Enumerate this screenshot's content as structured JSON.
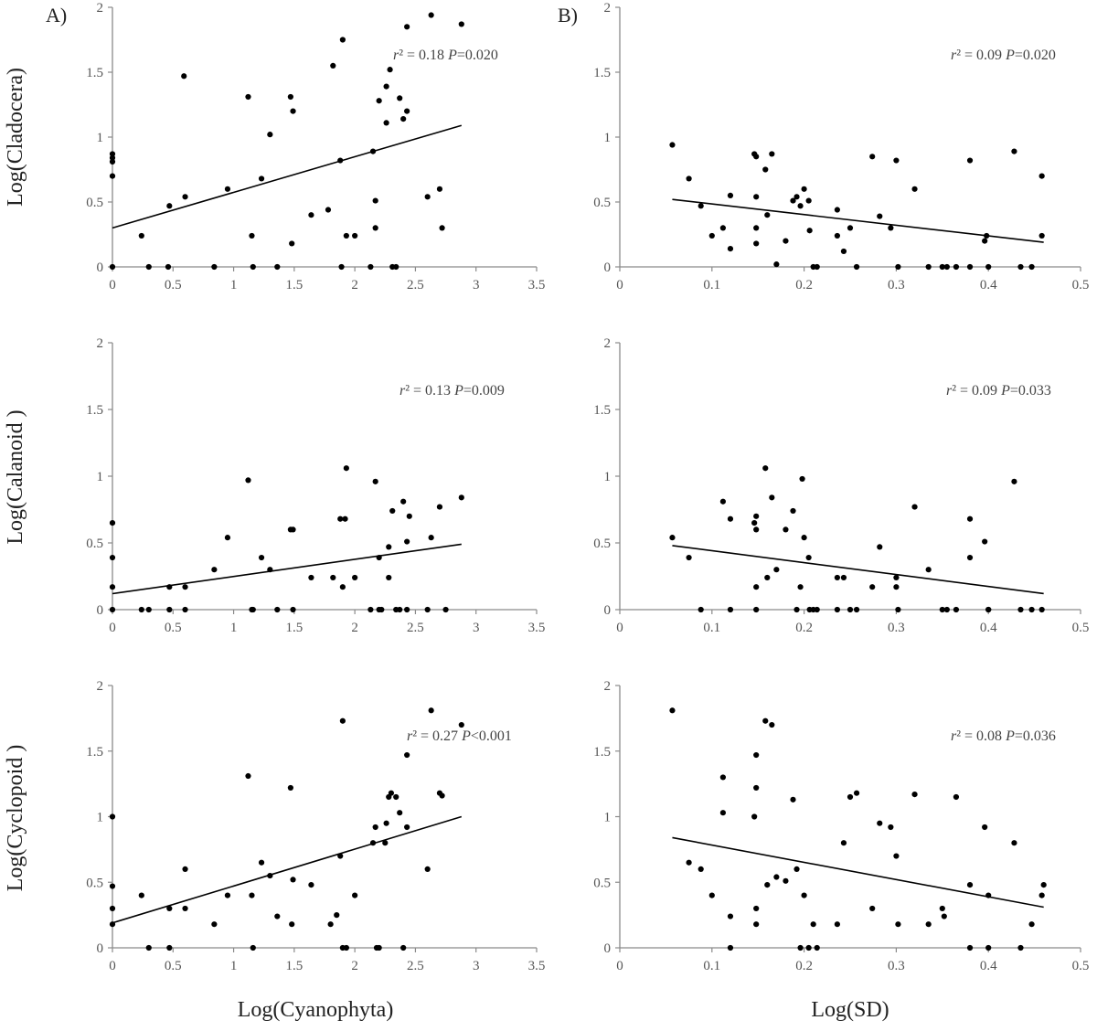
{
  "figure": {
    "panel_labels": [
      "A)",
      "B)"
    ],
    "y_axis_labels": [
      "Log(Cladocera)",
      "Log(Calanoid )",
      "Log(Cyclopoid )"
    ],
    "x_axis_labels": [
      "Log(Cyanophyta)",
      "Log(SD)"
    ]
  },
  "chart_data": [
    {
      "type": "scatter",
      "title": "",
      "xlabel": "",
      "ylabel": "Log(Cladocera)",
      "xlim": [
        0,
        3.5
      ],
      "ylim": [
        0,
        2
      ],
      "xticks": [
        "0",
        "0.5",
        "1",
        "1.5",
        "2",
        "2.5",
        "3",
        "3.5"
      ],
      "yticks": [
        "0",
        "0.5",
        "1",
        "1.5",
        "2"
      ],
      "annotation": {
        "r2_label": "r² = 0.18",
        "p_label": "P=0.020"
      },
      "trendline": {
        "x": [
          0,
          2.88
        ],
        "y": [
          0.3,
          1.09
        ]
      },
      "points": [
        [
          0,
          0.87
        ],
        [
          0,
          0.84
        ],
        [
          0,
          0.81
        ],
        [
          0,
          0.7
        ],
        [
          0,
          0
        ],
        [
          0.24,
          0.24
        ],
        [
          0.3,
          0
        ],
        [
          0.46,
          0
        ],
        [
          0.47,
          0.47
        ],
        [
          0.59,
          1.47
        ],
        [
          0.6,
          0.54
        ],
        [
          0.84,
          0
        ],
        [
          0.95,
          0.6
        ],
        [
          1.12,
          1.31
        ],
        [
          1.15,
          0.24
        ],
        [
          1.16,
          0
        ],
        [
          1.23,
          0.68
        ],
        [
          1.3,
          1.02
        ],
        [
          1.36,
          0
        ],
        [
          1.47,
          1.31
        ],
        [
          1.48,
          0.18
        ],
        [
          1.49,
          1.2
        ],
        [
          1.64,
          0.4
        ],
        [
          1.78,
          0.44
        ],
        [
          1.82,
          1.55
        ],
        [
          1.88,
          0.82
        ],
        [
          1.89,
          0
        ],
        [
          1.9,
          1.75
        ],
        [
          1.93,
          0.24
        ],
        [
          2.0,
          0.24
        ],
        [
          2.13,
          0
        ],
        [
          2.15,
          0.89
        ],
        [
          2.17,
          0.51
        ],
        [
          2.17,
          0.3
        ],
        [
          2.2,
          1.28
        ],
        [
          2.26,
          1.11
        ],
        [
          2.26,
          1.39
        ],
        [
          2.29,
          1.52
        ],
        [
          2.31,
          0
        ],
        [
          2.34,
          0
        ],
        [
          2.37,
          1.3
        ],
        [
          2.4,
          1.14
        ],
        [
          2.43,
          1.85
        ],
        [
          2.43,
          1.2
        ],
        [
          2.6,
          0.54
        ],
        [
          2.63,
          1.94
        ],
        [
          2.7,
          0.6
        ],
        [
          2.72,
          0.3
        ],
        [
          2.88,
          1.87
        ]
      ]
    },
    {
      "type": "scatter",
      "title": "",
      "xlabel": "",
      "ylabel": "",
      "xlim": [
        0,
        0.5
      ],
      "ylim": [
        0,
        2
      ],
      "xticks": [
        "0",
        "0.1",
        "0.2",
        "0.3",
        "0.4",
        "0.5"
      ],
      "yticks": [
        "0",
        "0.5",
        "1",
        "1.5",
        "2"
      ],
      "annotation": {
        "r2_label": "r² = 0.09",
        "p_label": "P=0.020"
      },
      "trendline": {
        "x": [
          0.057,
          0.46
        ],
        "y": [
          0.52,
          0.19
        ]
      },
      "points": [
        [
          0.057,
          0.94
        ],
        [
          0.075,
          0.68
        ],
        [
          0.088,
          0.47
        ],
        [
          0.1,
          0.24
        ],
        [
          0.112,
          0.3
        ],
        [
          0.12,
          0.14
        ],
        [
          0.12,
          0.55
        ],
        [
          0.146,
          0.87
        ],
        [
          0.148,
          0.85
        ],
        [
          0.148,
          0.54
        ],
        [
          0.148,
          0.3
        ],
        [
          0.148,
          0.18
        ],
        [
          0.158,
          0.75
        ],
        [
          0.16,
          0.4
        ],
        [
          0.165,
          0.87
        ],
        [
          0.17,
          0.02
        ],
        [
          0.18,
          0.2
        ],
        [
          0.188,
          0.51
        ],
        [
          0.192,
          0.54
        ],
        [
          0.196,
          0.47
        ],
        [
          0.2,
          0.6
        ],
        [
          0.205,
          0.51
        ],
        [
          0.206,
          0.28
        ],
        [
          0.21,
          0
        ],
        [
          0.214,
          0
        ],
        [
          0.236,
          0.44
        ],
        [
          0.236,
          0.24
        ],
        [
          0.243,
          0.12
        ],
        [
          0.25,
          0.3
        ],
        [
          0.257,
          0
        ],
        [
          0.274,
          0.85
        ],
        [
          0.282,
          0.39
        ],
        [
          0.294,
          0.3
        ],
        [
          0.3,
          0.82
        ],
        [
          0.302,
          0
        ],
        [
          0.32,
          0.6
        ],
        [
          0.335,
          0
        ],
        [
          0.35,
          0
        ],
        [
          0.355,
          0
        ],
        [
          0.365,
          0
        ],
        [
          0.38,
          0.82
        ],
        [
          0.38,
          0
        ],
        [
          0.396,
          0.2
        ],
        [
          0.398,
          0.24
        ],
        [
          0.4,
          0
        ],
        [
          0.428,
          0.89
        ],
        [
          0.435,
          0
        ],
        [
          0.447,
          0
        ],
        [
          0.458,
          0.7
        ],
        [
          0.458,
          0.24
        ]
      ]
    },
    {
      "type": "scatter",
      "title": "",
      "xlabel": "",
      "ylabel": "Log(Calanoid )",
      "xlim": [
        0,
        3.5
      ],
      "ylim": [
        0,
        2
      ],
      "xticks": [
        "0",
        "0.5",
        "1",
        "1.5",
        "2",
        "2.5",
        "3",
        "3.5"
      ],
      "yticks": [
        "0",
        "0.5",
        "1",
        "1.5",
        "2"
      ],
      "annotation": {
        "r2_label": "r² = 0.13",
        "p_label": "P=0.009"
      },
      "trendline": {
        "x": [
          0,
          2.88
        ],
        "y": [
          0.12,
          0.49
        ]
      },
      "points": [
        [
          0,
          0.65
        ],
        [
          0,
          0.39
        ],
        [
          0,
          0.17
        ],
        [
          0,
          0
        ],
        [
          0.24,
          0
        ],
        [
          0.3,
          0
        ],
        [
          0.47,
          0.17
        ],
        [
          0.47,
          0
        ],
        [
          0.6,
          0.17
        ],
        [
          0.6,
          0
        ],
        [
          0.84,
          0.3
        ],
        [
          0.95,
          0.54
        ],
        [
          1.12,
          0.97
        ],
        [
          1.15,
          0
        ],
        [
          1.16,
          0
        ],
        [
          1.23,
          0.39
        ],
        [
          1.3,
          0.3
        ],
        [
          1.36,
          0
        ],
        [
          1.47,
          0.6
        ],
        [
          1.49,
          0.6
        ],
        [
          1.49,
          0
        ],
        [
          1.64,
          0.24
        ],
        [
          1.82,
          0.24
        ],
        [
          1.88,
          0.68
        ],
        [
          1.9,
          0.17
        ],
        [
          1.92,
          0.68
        ],
        [
          1.93,
          1.06
        ],
        [
          2.0,
          0.24
        ],
        [
          2.13,
          0
        ],
        [
          2.17,
          0.96
        ],
        [
          2.2,
          0.39
        ],
        [
          2.2,
          0
        ],
        [
          2.22,
          0
        ],
        [
          2.28,
          0.24
        ],
        [
          2.28,
          0.47
        ],
        [
          2.31,
          0.74
        ],
        [
          2.34,
          0
        ],
        [
          2.37,
          0
        ],
        [
          2.4,
          0.81
        ],
        [
          2.43,
          0
        ],
        [
          2.43,
          0.51
        ],
        [
          2.45,
          0.7
        ],
        [
          2.6,
          0
        ],
        [
          2.63,
          0.54
        ],
        [
          2.7,
          0.77
        ],
        [
          2.75,
          0
        ],
        [
          2.88,
          0.84
        ]
      ]
    },
    {
      "type": "scatter",
      "title": "",
      "xlabel": "",
      "ylabel": "",
      "xlim": [
        0,
        0.5
      ],
      "ylim": [
        0,
        2
      ],
      "xticks": [
        "0",
        "0.1",
        "0.2",
        "0.3",
        "0.4",
        "0.5"
      ],
      "yticks": [
        "0",
        "0.5",
        "1",
        "1.5",
        "2"
      ],
      "annotation": {
        "r2_label": "r² = 0.09",
        "p_label": "P=0.033"
      },
      "trendline": {
        "x": [
          0.057,
          0.46
        ],
        "y": [
          0.48,
          0.12
        ]
      },
      "points": [
        [
          0.057,
          0.54
        ],
        [
          0.075,
          0.39
        ],
        [
          0.088,
          0
        ],
        [
          0.112,
          0.81
        ],
        [
          0.12,
          0.68
        ],
        [
          0.12,
          0
        ],
        [
          0.146,
          0.65
        ],
        [
          0.148,
          0.7
        ],
        [
          0.148,
          0.6
        ],
        [
          0.148,
          0.17
        ],
        [
          0.148,
          0
        ],
        [
          0.158,
          1.06
        ],
        [
          0.16,
          0.24
        ],
        [
          0.165,
          0.84
        ],
        [
          0.17,
          0.3
        ],
        [
          0.18,
          0.6
        ],
        [
          0.188,
          0.74
        ],
        [
          0.192,
          0
        ],
        [
          0.196,
          0.17
        ],
        [
          0.198,
          0.98
        ],
        [
          0.2,
          0.54
        ],
        [
          0.205,
          0.39
        ],
        [
          0.206,
          0
        ],
        [
          0.21,
          0
        ],
        [
          0.214,
          0
        ],
        [
          0.236,
          0.24
        ],
        [
          0.236,
          0
        ],
        [
          0.243,
          0.24
        ],
        [
          0.25,
          0
        ],
        [
          0.257,
          0
        ],
        [
          0.274,
          0.17
        ],
        [
          0.282,
          0.47
        ],
        [
          0.3,
          0.24
        ],
        [
          0.3,
          0.17
        ],
        [
          0.302,
          0
        ],
        [
          0.32,
          0.77
        ],
        [
          0.335,
          0.3
        ],
        [
          0.35,
          0
        ],
        [
          0.355,
          0
        ],
        [
          0.365,
          0
        ],
        [
          0.38,
          0.68
        ],
        [
          0.38,
          0.39
        ],
        [
          0.396,
          0.51
        ],
        [
          0.4,
          0
        ],
        [
          0.4,
          0
        ],
        [
          0.428,
          0.96
        ],
        [
          0.435,
          0
        ],
        [
          0.447,
          0
        ],
        [
          0.458,
          0
        ]
      ]
    },
    {
      "type": "scatter",
      "title": "",
      "xlabel": "Log(Cyanophyta)",
      "ylabel": "Log(Cyclopoid )",
      "xlim": [
        0,
        3.5
      ],
      "ylim": [
        0,
        2
      ],
      "xticks": [
        "0",
        "0.5",
        "1",
        "1.5",
        "2",
        "2.5",
        "3",
        "3.5"
      ],
      "yticks": [
        "0",
        "0.5",
        "1",
        "1.5",
        "2"
      ],
      "annotation": {
        "r2_label": "r² = 0.27",
        "p_label": "P<0.001"
      },
      "trendline": {
        "x": [
          0,
          2.88
        ],
        "y": [
          0.19,
          1.0
        ]
      },
      "points": [
        [
          0,
          0.47
        ],
        [
          0,
          0.3
        ],
        [
          0,
          0.18
        ],
        [
          0,
          1.0
        ],
        [
          0.24,
          0.4
        ],
        [
          0.3,
          0
        ],
        [
          0.47,
          0.3
        ],
        [
          0.47,
          0
        ],
        [
          0.6,
          0.6
        ],
        [
          0.6,
          0.3
        ],
        [
          0.84,
          0.18
        ],
        [
          0.95,
          0.4
        ],
        [
          1.12,
          1.31
        ],
        [
          1.15,
          0.4
        ],
        [
          1.16,
          0
        ],
        [
          1.23,
          0.65
        ],
        [
          1.3,
          0.55
        ],
        [
          1.36,
          0.24
        ],
        [
          1.47,
          1.22
        ],
        [
          1.48,
          0.18
        ],
        [
          1.49,
          0.52
        ],
        [
          1.64,
          0.48
        ],
        [
          1.8,
          0.18
        ],
        [
          1.85,
          0.25
        ],
        [
          1.88,
          0.7
        ],
        [
          1.9,
          0
        ],
        [
          1.9,
          1.73
        ],
        [
          1.93,
          0
        ],
        [
          2.0,
          0.4
        ],
        [
          2.15,
          0.8
        ],
        [
          2.17,
          0.92
        ],
        [
          2.18,
          0
        ],
        [
          2.2,
          0
        ],
        [
          2.25,
          0.8
        ],
        [
          2.26,
          0.95
        ],
        [
          2.28,
          1.15
        ],
        [
          2.3,
          1.18
        ],
        [
          2.34,
          1.15
        ],
        [
          2.37,
          1.03
        ],
        [
          2.4,
          0
        ],
        [
          2.43,
          1.47
        ],
        [
          2.43,
          0.92
        ],
        [
          2.6,
          0.6
        ],
        [
          2.63,
          1.81
        ],
        [
          2.7,
          1.18
        ],
        [
          2.72,
          1.16
        ],
        [
          2.88,
          1.7
        ]
      ]
    },
    {
      "type": "scatter",
      "title": "",
      "xlabel": "Log(SD)",
      "ylabel": "",
      "xlim": [
        0,
        0.5
      ],
      "ylim": [
        0,
        2
      ],
      "xticks": [
        "0",
        "0.1",
        "0.2",
        "0.3",
        "0.4",
        "0.5"
      ],
      "yticks": [
        "0",
        "0.5",
        "1",
        "1.5",
        "2"
      ],
      "annotation": {
        "r2_label": "r² = 0.08",
        "p_label": "P=0.036"
      },
      "trendline": {
        "x": [
          0.057,
          0.46
        ],
        "y": [
          0.84,
          0.31
        ]
      },
      "points": [
        [
          0.057,
          1.81
        ],
        [
          0.075,
          0.65
        ],
        [
          0.088,
          0.6
        ],
        [
          0.1,
          0.4
        ],
        [
          0.112,
          1.3
        ],
        [
          0.112,
          1.03
        ],
        [
          0.12,
          0.24
        ],
        [
          0.12,
          0
        ],
        [
          0.146,
          1.0
        ],
        [
          0.148,
          1.47
        ],
        [
          0.148,
          1.22
        ],
        [
          0.148,
          0.3
        ],
        [
          0.148,
          0.18
        ],
        [
          0.158,
          1.73
        ],
        [
          0.16,
          0.48
        ],
        [
          0.165,
          1.7
        ],
        [
          0.17,
          0.54
        ],
        [
          0.18,
          0.51
        ],
        [
          0.188,
          1.13
        ],
        [
          0.192,
          0.6
        ],
        [
          0.196,
          0
        ],
        [
          0.2,
          0.4
        ],
        [
          0.205,
          0
        ],
        [
          0.21,
          0.18
        ],
        [
          0.214,
          0
        ],
        [
          0.236,
          0.18
        ],
        [
          0.243,
          0.8
        ],
        [
          0.25,
          1.15
        ],
        [
          0.257,
          1.18
        ],
        [
          0.274,
          0.3
        ],
        [
          0.282,
          0.95
        ],
        [
          0.294,
          0.92
        ],
        [
          0.3,
          0.7
        ],
        [
          0.302,
          0.18
        ],
        [
          0.32,
          1.17
        ],
        [
          0.335,
          0.18
        ],
        [
          0.35,
          0.3
        ],
        [
          0.352,
          0.24
        ],
        [
          0.365,
          1.15
        ],
        [
          0.38,
          0.48
        ],
        [
          0.38,
          0
        ],
        [
          0.396,
          0.92
        ],
        [
          0.4,
          0.4
        ],
        [
          0.4,
          0
        ],
        [
          0.428,
          0.8
        ],
        [
          0.435,
          0
        ],
        [
          0.447,
          0.18
        ],
        [
          0.458,
          0.4
        ],
        [
          0.46,
          0.48
        ]
      ]
    }
  ]
}
